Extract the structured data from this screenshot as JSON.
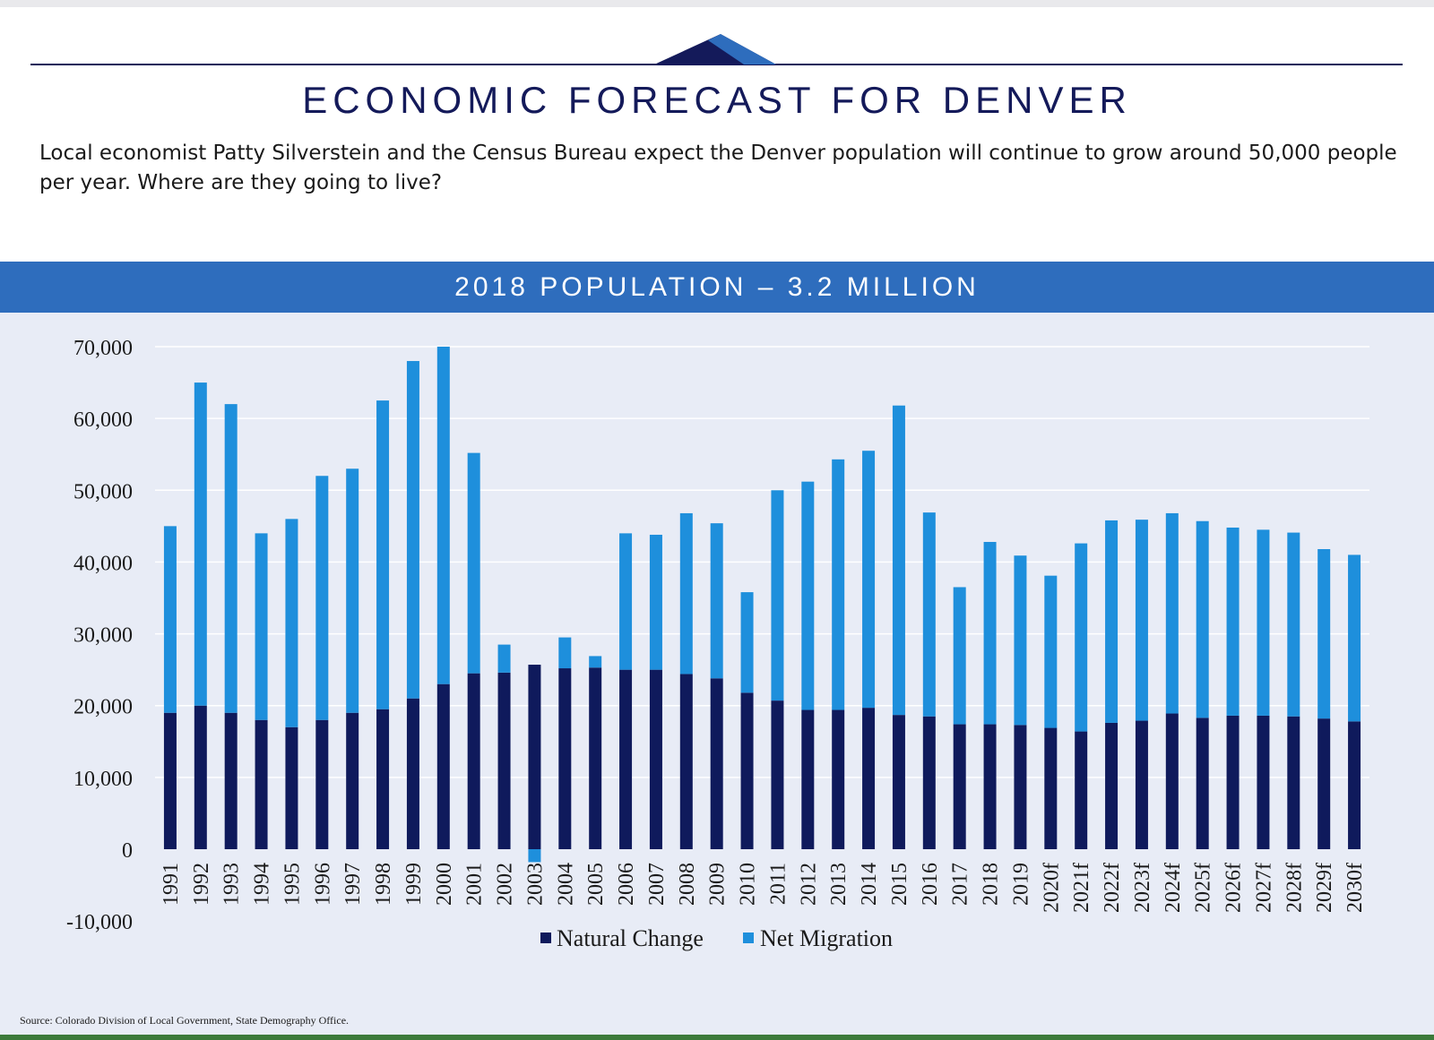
{
  "header": {
    "title": "ECONOMIC FORECAST FOR DENVER",
    "intro": "Local economist Patty Silverstein and the Census Bureau expect the Denver population will continue to grow around 50,000 people per year. Where are they going to live?"
  },
  "banner": {
    "text": "2018 POPULATION – 3.2 MILLION"
  },
  "colors": {
    "title": "#141a5a",
    "banner": "#2e6dbd",
    "panel": "#e8ecf6",
    "natural_change": "#0f1a5c",
    "net_migration": "#1e8fdc"
  },
  "chart_data": {
    "type": "bar",
    "stacked": true,
    "title": "",
    "xlabel": "",
    "ylabel": "",
    "ylim": [
      -10000,
      70000
    ],
    "yticks": [
      -10000,
      0,
      10000,
      20000,
      30000,
      40000,
      50000,
      60000,
      70000
    ],
    "ytick_labels": [
      "-10,000",
      "0",
      "10,000",
      "20,000",
      "30,000",
      "40,000",
      "50,000",
      "60,000",
      "70,000"
    ],
    "grid": true,
    "legend_position": "bottom",
    "categories": [
      "1991",
      "1992",
      "1993",
      "1994",
      "1995",
      "1996",
      "1997",
      "1998",
      "1999",
      "2000",
      "2001",
      "2002",
      "2003",
      "2004",
      "2005",
      "2006",
      "2007",
      "2008",
      "2009",
      "2010",
      "2011",
      "2012",
      "2013",
      "2014",
      "2015",
      "2016",
      "2017",
      "2018",
      "2019",
      "2020f",
      "2021f",
      "2022f",
      "2023f",
      "2024f",
      "2025f",
      "2026f",
      "2027f",
      "2028f",
      "2029f",
      "2030f"
    ],
    "series": [
      {
        "name": "Natural Change",
        "color": "#0f1a5c",
        "values": [
          19000,
          20000,
          19000,
          18000,
          17000,
          18000,
          19000,
          19500,
          21000,
          23000,
          24500,
          24600,
          25700,
          25200,
          25300,
          25000,
          25000,
          24400,
          23800,
          21800,
          20700,
          19400,
          19400,
          19700,
          18700,
          18500,
          17400,
          17400,
          17300,
          16900,
          16400,
          17600,
          17900,
          18900,
          18300,
          18600,
          18600,
          18500,
          18200,
          17800
        ]
      },
      {
        "name": "Net Migration",
        "color": "#1e8fdc",
        "values": [
          26000,
          45000,
          43000,
          26000,
          29000,
          34000,
          34000,
          43000,
          47000,
          47000,
          30700,
          3900,
          -1800,
          4300,
          1600,
          19000,
          18800,
          22400,
          21600,
          14000,
          29300,
          31800,
          34900,
          35800,
          43100,
          28400,
          19100,
          25400,
          23600,
          21200,
          26200,
          28200,
          28000,
          27900,
          27400,
          26200,
          25900,
          25600,
          23600,
          23200
        ]
      }
    ]
  },
  "source": "Source: Colorado Division of Local Government, State Demography Office."
}
